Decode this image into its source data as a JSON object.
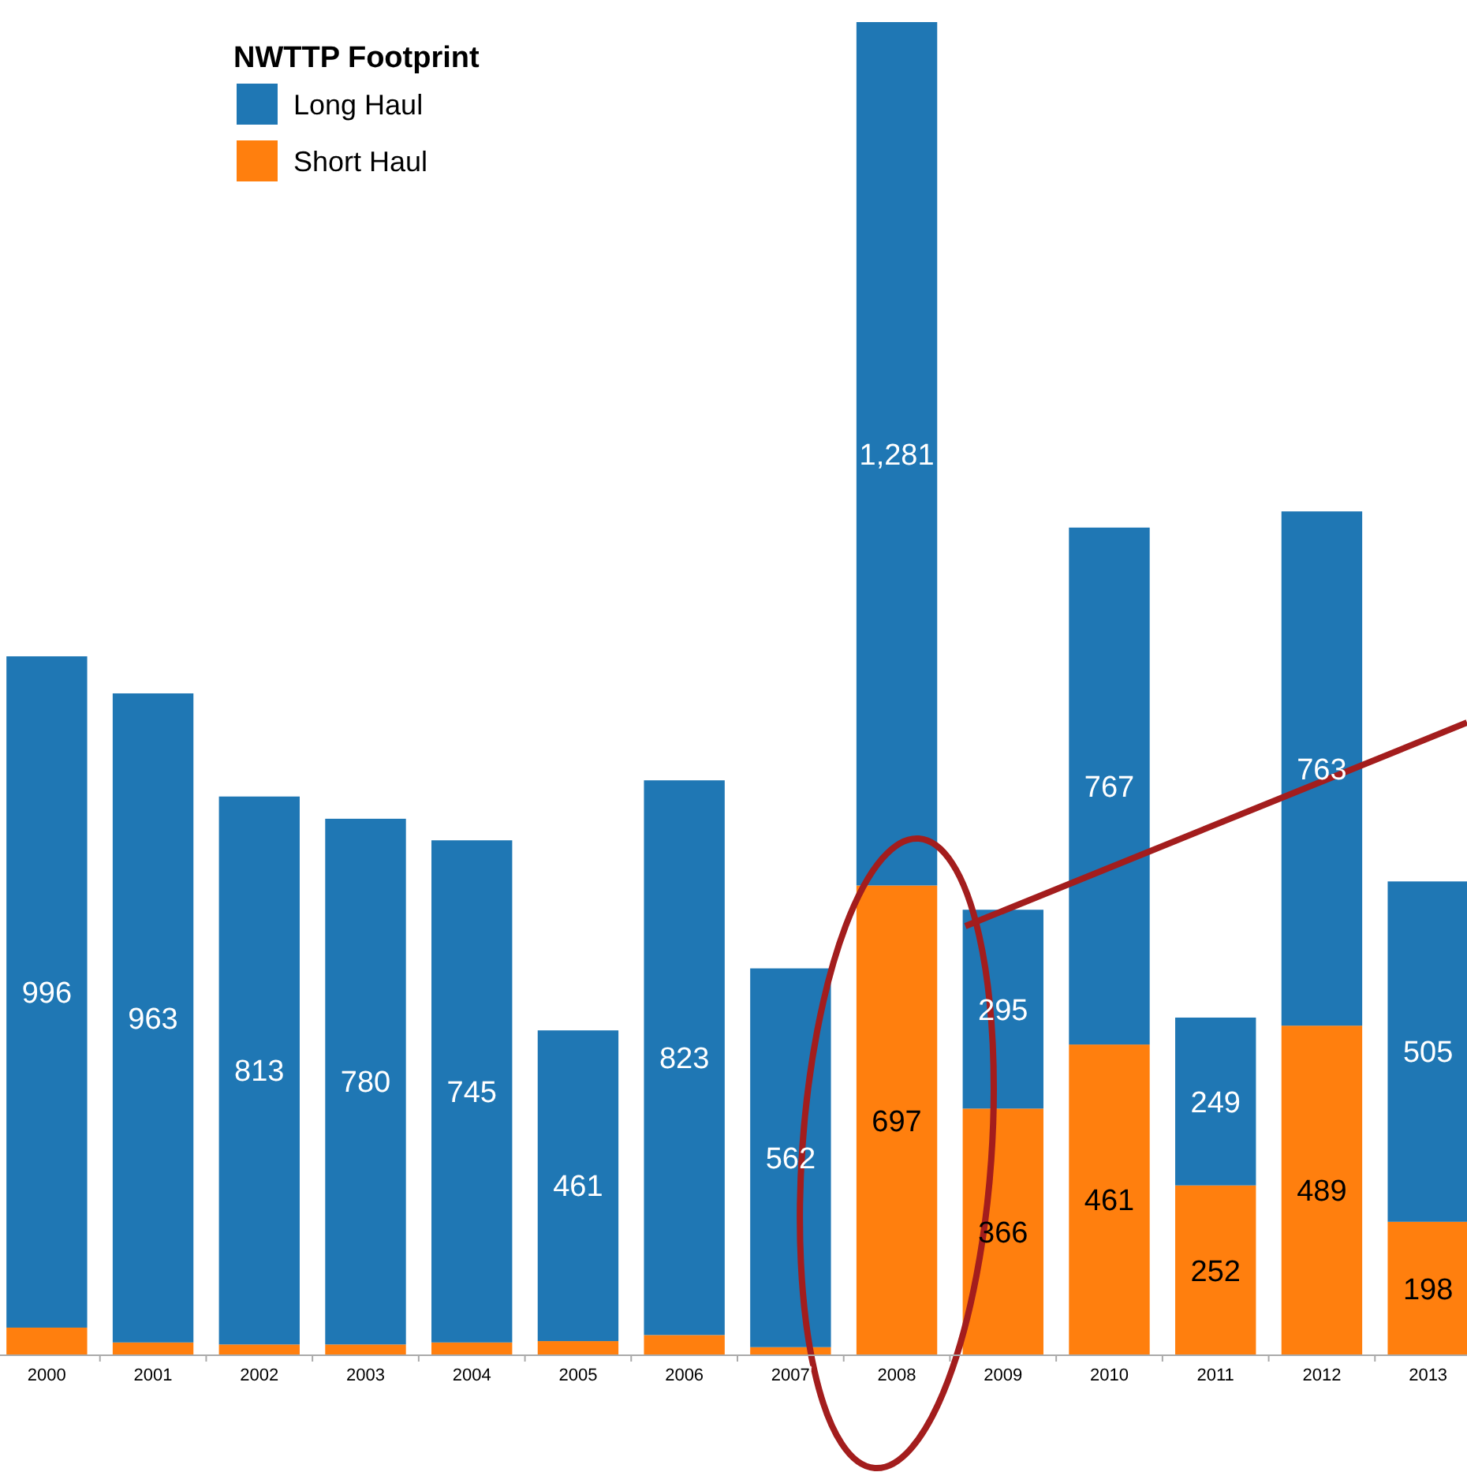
{
  "chart_data": {
    "type": "bar",
    "stacked": true,
    "legend_title": "NWTTP Footprint",
    "legend": "top left",
    "tick_labels": "x",
    "categories": [
      "2000",
      "2001",
      "2002",
      "2003",
      "2004",
      "2005",
      "2006",
      "2007",
      "2008",
      "2009",
      "2010",
      "2011",
      "2012",
      "2013"
    ],
    "series": [
      {
        "name": "Short Haul",
        "color": "#ff7f0e",
        "values": [
          41,
          19,
          16,
          16,
          19,
          21,
          30,
          12,
          697,
          366,
          461,
          252,
          489,
          198
        ],
        "value_labels": [
          null,
          null,
          null,
          null,
          null,
          null,
          null,
          null,
          "697",
          "366",
          "461",
          "252",
          "489",
          "198"
        ]
      },
      {
        "name": "Long Haul",
        "color": "#1f77b4",
        "values": [
          996,
          963,
          813,
          780,
          745,
          461,
          823,
          562,
          1281,
          295,
          767,
          249,
          763,
          505
        ],
        "value_labels": [
          "996",
          "963",
          "813",
          "780",
          "745",
          "461",
          "823",
          "562",
          "1,281",
          "295",
          "767",
          "249",
          "763",
          "505"
        ]
      }
    ]
  }
}
